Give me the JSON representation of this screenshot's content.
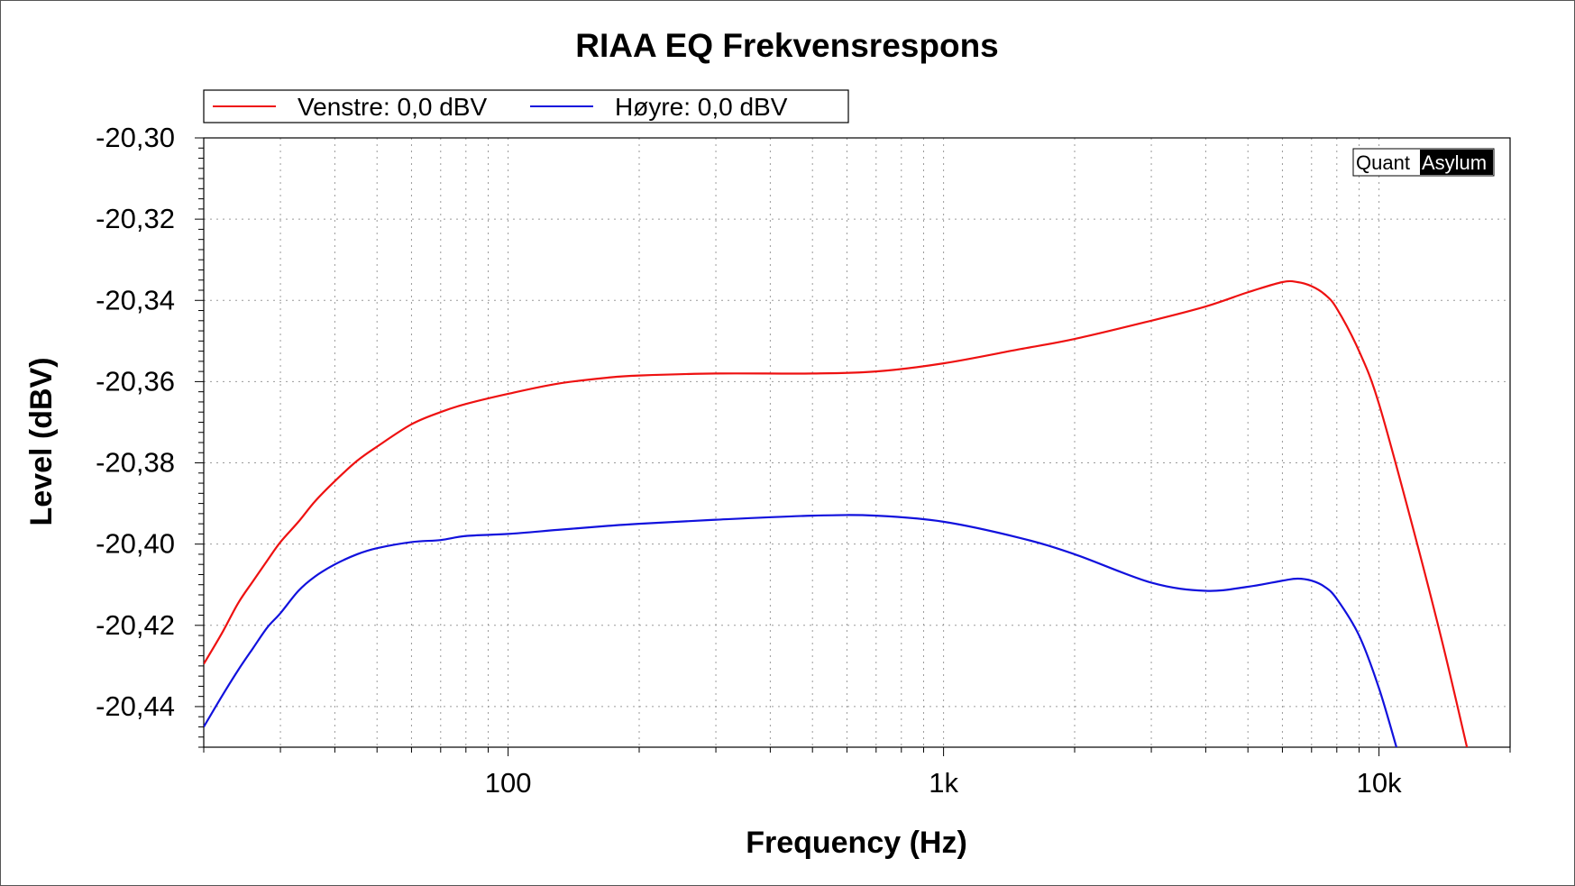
{
  "chart_data": {
    "type": "line",
    "title": "RIAA EQ Frekvensrespons",
    "xlabel": "Frequency (Hz)",
    "ylabel": "Level (dBV)",
    "x_scale": "log",
    "xlim": [
      20,
      20000
    ],
    "ylim": [
      -20.45,
      -20.3
    ],
    "x_ticks": [
      {
        "value": 100,
        "label": "100"
      },
      {
        "value": 1000,
        "label": "1k"
      },
      {
        "value": 10000,
        "label": "10k"
      }
    ],
    "y_ticks": [
      {
        "value": -20.3,
        "label": "-20,30"
      },
      {
        "value": -20.32,
        "label": "-20,32"
      },
      {
        "value": -20.34,
        "label": "-20,34"
      },
      {
        "value": -20.36,
        "label": "-20,36"
      },
      {
        "value": -20.38,
        "label": "-20,38"
      },
      {
        "value": -20.4,
        "label": "-20,40"
      },
      {
        "value": -20.42,
        "label": "-20,42"
      },
      {
        "value": -20.44,
        "label": "-20,44"
      }
    ],
    "grid": true,
    "legend_position": "top-left",
    "watermark": {
      "part1": "Quant",
      "part2": "Asylum"
    },
    "series": [
      {
        "name": "Venstre: 0,0 dBV",
        "color": "#ee1111",
        "x": [
          20,
          22,
          24,
          26,
          28,
          30,
          33,
          36,
          40,
          45,
          50,
          60,
          70,
          80,
          100,
          130,
          170,
          200,
          300,
          500,
          700,
          1000,
          1500,
          2000,
          3000,
          4000,
          5000,
          6000,
          6500,
          7000,
          7500,
          8000,
          9000,
          10000,
          12000,
          14000,
          16000
        ],
        "y": [
          -20.4295,
          -20.422,
          -20.4145,
          -20.409,
          -20.404,
          -20.3995,
          -20.3945,
          -20.3895,
          -20.3845,
          -20.3795,
          -20.376,
          -20.3705,
          -20.3675,
          -20.3655,
          -20.363,
          -20.3605,
          -20.359,
          -20.3585,
          -20.358,
          -20.358,
          -20.3575,
          -20.3555,
          -20.352,
          -20.3495,
          -20.345,
          -20.3415,
          -20.338,
          -20.3355,
          -20.3355,
          -20.3365,
          -20.3385,
          -20.342,
          -20.3525,
          -20.3655,
          -20.3965,
          -20.4245,
          -20.451
        ]
      },
      {
        "name": "Høyre: 0,0 dBV",
        "color": "#1111dd",
        "x": [
          20,
          22,
          24,
          26,
          28,
          30,
          33,
          36,
          40,
          45,
          50,
          60,
          70,
          80,
          100,
          130,
          170,
          200,
          300,
          500,
          700,
          1000,
          1500,
          2000,
          3000,
          4000,
          5000,
          6000,
          6500,
          7000,
          7500,
          8000,
          9000,
          10000,
          11000
        ],
        "y": [
          -20.445,
          -20.4375,
          -20.431,
          -20.4255,
          -20.4205,
          -20.417,
          -20.4115,
          -20.408,
          -20.405,
          -20.4025,
          -20.401,
          -20.3995,
          -20.399,
          -20.398,
          -20.3975,
          -20.3965,
          -20.3955,
          -20.395,
          -20.394,
          -20.393,
          -20.393,
          -20.3945,
          -20.3985,
          -20.4025,
          -20.4095,
          -20.4115,
          -20.4105,
          -20.409,
          -20.4085,
          -20.409,
          -20.4105,
          -20.4135,
          -20.4225,
          -20.4355,
          -20.4505
        ]
      }
    ]
  }
}
